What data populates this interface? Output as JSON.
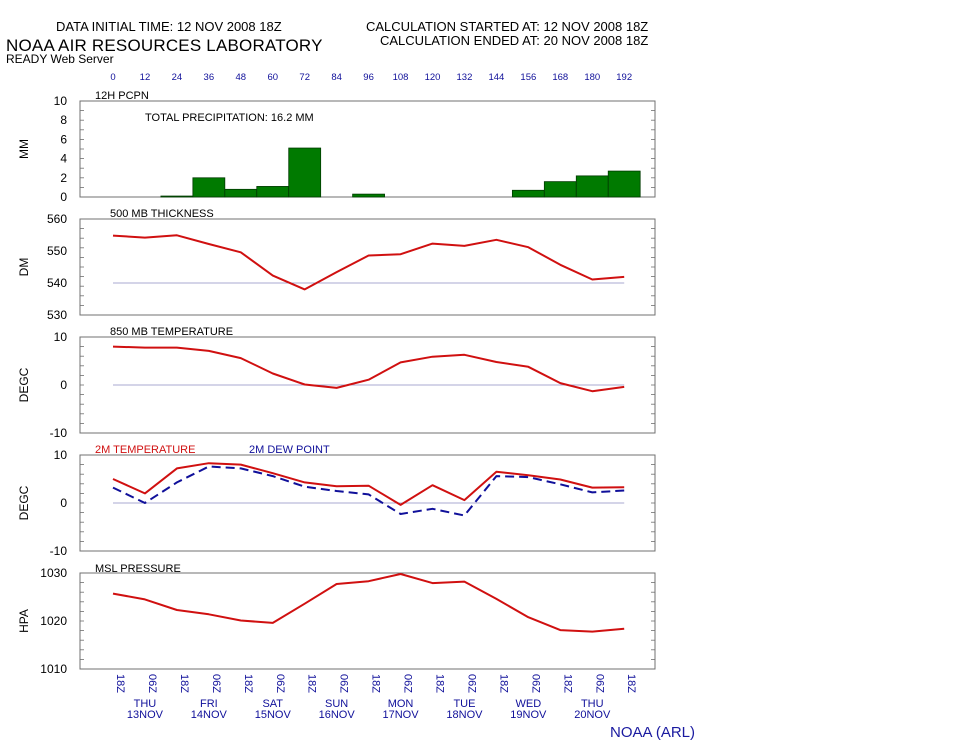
{
  "header": {
    "initial_time": "DATA INITIAL TIME: 12 NOV 2008 18Z",
    "lab_name": "NOAA AIR RESOURCES LABORATORY",
    "server": "READY Web Server",
    "calc_started": "CALCULATION STARTED AT: 12 NOV 2008 18Z",
    "calc_ended": "CALCULATION ENDED AT: 20 NOV 2008 18Z"
  },
  "footer": "NOAA (ARL)",
  "colors": {
    "red": "#d01010",
    "blue": "#10109a",
    "green": "#007a00",
    "frame": "#707070",
    "zero": "#a8a8d0"
  },
  "forecast_hours": [
    "0",
    "12",
    "24",
    "36",
    "48",
    "60",
    "72",
    "84",
    "96",
    "108",
    "120",
    "132",
    "144",
    "156",
    "168",
    "180",
    "192"
  ],
  "time_labels": [
    "18Z",
    "06Z",
    "18Z",
    "06Z",
    "18Z",
    "06Z",
    "18Z",
    "06Z",
    "18Z",
    "06Z",
    "18Z",
    "06Z",
    "18Z",
    "06Z",
    "18Z",
    "06Z",
    "18Z"
  ],
  "day_labels": [
    {
      "day": "THU",
      "date": "13NOV",
      "idx": 1
    },
    {
      "day": "FRI",
      "date": "14NOV",
      "idx": 3
    },
    {
      "day": "SAT",
      "date": "15NOV",
      "idx": 5
    },
    {
      "day": "SUN",
      "date": "16NOV",
      "idx": 7
    },
    {
      "day": "MON",
      "date": "17NOV",
      "idx": 9
    },
    {
      "day": "TUE",
      "date": "18NOV",
      "idx": 11
    },
    {
      "day": "WED",
      "date": "19NOV",
      "idx": 13
    },
    {
      "day": "THU",
      "date": "20NOV",
      "idx": 15
    }
  ],
  "chart_data": [
    {
      "type": "bar",
      "title": "12H PCPN",
      "annotation": "TOTAL PRECIPITATION:  16.2 MM",
      "ylabel": "MM",
      "ylim": [
        0,
        10
      ],
      "yticks": [
        0,
        2,
        4,
        6,
        8,
        10
      ],
      "x": [
        0,
        12,
        24,
        36,
        48,
        60,
        72,
        84,
        96,
        108,
        120,
        132,
        144,
        156,
        168,
        180,
        192
      ],
      "values": [
        0,
        0,
        0.1,
        2.0,
        0.8,
        1.1,
        5.1,
        0,
        0.3,
        0,
        0,
        0,
        0,
        0.7,
        1.6,
        2.2,
        2.7
      ]
    },
    {
      "type": "line",
      "title": "500 MB  THICKNESS",
      "ylabel": "DM",
      "ylim": [
        530,
        560
      ],
      "yticks": [
        530,
        540,
        550,
        560
      ],
      "ref_line": 540,
      "x": [
        0,
        12,
        24,
        36,
        48,
        60,
        72,
        84,
        96,
        108,
        120,
        132,
        144,
        156,
        168,
        180,
        192
      ],
      "series": [
        {
          "values": [
            554.8,
            554.2,
            554.9,
            552.2,
            549.6,
            542.3,
            538.0,
            543.4,
            548.6,
            549.0,
            552.3,
            551.6,
            553.5,
            551.2,
            545.7,
            541.1,
            541.9
          ]
        }
      ]
    },
    {
      "type": "line",
      "title": "850 MB  TEMPERATURE",
      "ylabel": "DEGC",
      "ylim": [
        -10,
        10
      ],
      "yticks": [
        -10,
        0,
        10
      ],
      "ref_line": 0,
      "x": [
        0,
        12,
        24,
        36,
        48,
        60,
        72,
        84,
        96,
        108,
        120,
        132,
        144,
        156,
        168,
        180,
        192
      ],
      "series": [
        {
          "values": [
            8.0,
            7.8,
            7.8,
            7.1,
            5.6,
            2.4,
            0.1,
            -0.6,
            1.1,
            4.7,
            5.9,
            6.3,
            4.8,
            3.8,
            0.4,
            -1.3,
            -0.4
          ]
        }
      ]
    },
    {
      "type": "line",
      "title": "",
      "ylabel": "DEGC",
      "ylim": [
        -10,
        10
      ],
      "yticks": [
        -10,
        0,
        10
      ],
      "ref_line": 0,
      "x": [
        0,
        12,
        24,
        36,
        48,
        60,
        72,
        84,
        96,
        108,
        120,
        132,
        144,
        156,
        168,
        180,
        192
      ],
      "series": [
        {
          "name": "2M TEMPERATURE",
          "values": [
            5.0,
            2.0,
            7.2,
            8.3,
            8.0,
            6.2,
            4.3,
            3.5,
            3.6,
            -0.4,
            3.7,
            0.6,
            6.5,
            5.8,
            4.9,
            3.2,
            3.3
          ]
        },
        {
          "name": "2M   DEW POINT",
          "values": [
            3.2,
            0.0,
            4.3,
            7.6,
            7.2,
            5.6,
            3.4,
            2.5,
            1.8,
            -2.3,
            -1.2,
            -2.6,
            5.6,
            5.4,
            3.9,
            2.2,
            2.6
          ]
        }
      ]
    },
    {
      "type": "line",
      "title": "MSL PRESSURE",
      "ylabel": "HPA",
      "ylim": [
        1010,
        1030
      ],
      "yticks": [
        1010,
        1020,
        1030
      ],
      "x": [
        0,
        12,
        24,
        36,
        48,
        60,
        72,
        84,
        96,
        108,
        120,
        132,
        144,
        156,
        168,
        180,
        192
      ],
      "series": [
        {
          "values": [
            1025.7,
            1024.5,
            1022.3,
            1021.4,
            1020.1,
            1019.6,
            1023.6,
            1027.7,
            1028.3,
            1029.8,
            1027.9,
            1028.2,
            1024.6,
            1020.8,
            1018.1,
            1017.8,
            1018.4
          ]
        }
      ]
    }
  ]
}
